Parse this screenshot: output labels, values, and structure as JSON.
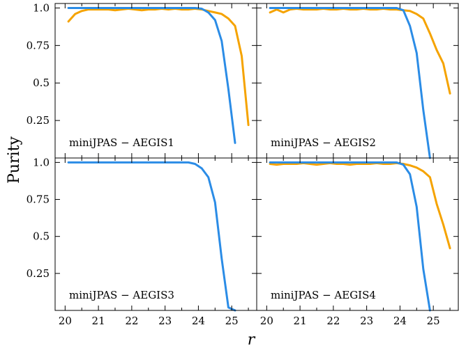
{
  "chart_data": {
    "type": "line",
    "ylabel": "Purity",
    "xlabel": "r",
    "xlim": [
      19.7,
      25.75
    ],
    "ylim": [
      0.0,
      1.03
    ],
    "xticks": [
      20,
      21,
      22,
      23,
      24,
      25
    ],
    "yticks": [
      0.25,
      0.5,
      0.75,
      1.0
    ],
    "ytick_labels": [
      "0.25",
      "0.5",
      "0.75",
      "1.0"
    ],
    "grid": false,
    "colors": {
      "blue": "#2b8ce6",
      "orange": "#f5a300"
    },
    "panels": [
      {
        "label": "miniJPAS − AEGIS1",
        "series": [
          {
            "color": "orange",
            "x": [
              20.1,
              20.3,
              20.5,
              20.7,
              20.9,
              21.1,
              21.3,
              21.5,
              21.7,
              21.9,
              22.1,
              22.3,
              22.5,
              22.7,
              22.9,
              23.1,
              23.3,
              23.5,
              23.7,
              23.9,
              24.1,
              24.3,
              24.5,
              24.7,
              24.9,
              25.1,
              25.3,
              25.5
            ],
            "y": [
              0.91,
              0.96,
              0.98,
              0.99,
              0.99,
              0.99,
              0.99,
              0.985,
              0.99,
              0.995,
              0.99,
              0.985,
              0.99,
              0.99,
              0.995,
              0.99,
              0.995,
              0.99,
              0.99,
              0.995,
              0.99,
              0.98,
              0.97,
              0.96,
              0.93,
              0.88,
              0.68,
              0.22
            ]
          },
          {
            "color": "blue",
            "x": [
              20.1,
              20.3,
              20.5,
              20.7,
              20.9,
              21.1,
              21.3,
              21.5,
              21.7,
              21.9,
              22.1,
              22.3,
              22.5,
              22.7,
              22.9,
              23.1,
              23.3,
              23.5,
              23.7,
              23.9,
              24.1,
              24.3,
              24.5,
              24.7,
              24.9,
              25.1,
              25.3
            ],
            "y": [
              1.0,
              1.0,
              1.0,
              1.0,
              1.0,
              1.0,
              1.0,
              1.0,
              1.0,
              1.0,
              1.0,
              1.0,
              1.0,
              1.0,
              1.0,
              1.0,
              1.0,
              1.0,
              1.0,
              1.0,
              0.995,
              0.97,
              0.92,
              0.78,
              0.46,
              0.1,
              null
            ]
          }
        ]
      },
      {
        "label": "miniJPAS − AEGIS2",
        "series": [
          {
            "color": "orange",
            "x": [
              20.1,
              20.3,
              20.5,
              20.7,
              20.9,
              21.1,
              21.3,
              21.5,
              21.7,
              21.9,
              22.1,
              22.3,
              22.5,
              22.7,
              22.9,
              23.1,
              23.3,
              23.5,
              23.7,
              23.9,
              24.1,
              24.3,
              24.5,
              24.7,
              24.9,
              25.1,
              25.3,
              25.5
            ],
            "y": [
              0.97,
              0.99,
              0.97,
              0.99,
              0.995,
              0.99,
              0.99,
              0.99,
              0.995,
              0.99,
              0.99,
              0.995,
              0.99,
              0.99,
              0.995,
              0.99,
              0.99,
              0.995,
              0.99,
              0.99,
              0.985,
              0.98,
              0.96,
              0.93,
              0.83,
              0.72,
              0.63,
              0.43
            ]
          },
          {
            "color": "blue",
            "x": [
              20.1,
              20.3,
              20.5,
              20.7,
              20.9,
              21.1,
              21.3,
              21.5,
              21.7,
              21.9,
              22.1,
              22.3,
              22.5,
              22.7,
              22.9,
              23.1,
              23.3,
              23.5,
              23.7,
              23.9,
              24.1,
              24.3,
              24.5,
              24.7,
              24.9
            ],
            "y": [
              1.0,
              1.0,
              1.0,
              1.0,
              1.0,
              1.0,
              1.0,
              1.0,
              1.0,
              1.0,
              1.0,
              1.0,
              1.0,
              1.0,
              1.0,
              1.0,
              1.0,
              1.0,
              1.0,
              1.0,
              0.985,
              0.88,
              0.7,
              0.32,
              0.0
            ]
          }
        ]
      },
      {
        "label": "miniJPAS − AEGIS3",
        "series": [
          {
            "color": "blue",
            "x": [
              20.1,
              20.3,
              20.5,
              20.7,
              20.9,
              21.1,
              21.3,
              21.5,
              21.7,
              21.9,
              22.1,
              22.3,
              22.5,
              22.7,
              22.9,
              23.1,
              23.3,
              23.5,
              23.7,
              23.9,
              24.1,
              24.3,
              24.5,
              24.7,
              24.9,
              25.1
            ],
            "y": [
              1.0,
              1.0,
              1.0,
              1.0,
              1.0,
              1.0,
              1.0,
              1.0,
              1.0,
              1.0,
              1.0,
              1.0,
              1.0,
              1.0,
              1.0,
              1.0,
              1.0,
              1.0,
              1.0,
              0.99,
              0.96,
              0.9,
              0.73,
              0.35,
              0.02,
              0.0
            ]
          }
        ]
      },
      {
        "label": "miniJPAS − AEGIS4",
        "series": [
          {
            "color": "orange",
            "x": [
              20.1,
              20.3,
              20.5,
              20.7,
              20.9,
              21.1,
              21.3,
              21.5,
              21.7,
              21.9,
              22.1,
              22.3,
              22.5,
              22.7,
              22.9,
              23.1,
              23.3,
              23.5,
              23.7,
              23.9,
              24.1,
              24.3,
              24.5,
              24.7,
              24.9,
              25.1,
              25.3,
              25.5
            ],
            "y": [
              0.99,
              0.985,
              0.99,
              0.99,
              0.99,
              0.995,
              0.99,
              0.985,
              0.99,
              0.995,
              0.99,
              0.99,
              0.985,
              0.99,
              0.99,
              0.99,
              0.995,
              0.99,
              0.99,
              0.995,
              0.99,
              0.98,
              0.965,
              0.94,
              0.9,
              0.72,
              0.58,
              0.42
            ]
          },
          {
            "color": "blue",
            "x": [
              20.1,
              20.3,
              20.5,
              20.7,
              20.9,
              21.1,
              21.3,
              21.5,
              21.7,
              21.9,
              22.1,
              22.3,
              22.5,
              22.7,
              22.9,
              23.1,
              23.3,
              23.5,
              23.7,
              23.9,
              24.1,
              24.3,
              24.5,
              24.7,
              24.9
            ],
            "y": [
              1.0,
              1.0,
              1.0,
              1.0,
              1.0,
              1.0,
              1.0,
              1.0,
              1.0,
              1.0,
              1.0,
              1.0,
              1.0,
              1.0,
              1.0,
              1.0,
              1.0,
              1.0,
              1.0,
              1.0,
              0.985,
              0.92,
              0.7,
              0.28,
              0.0
            ]
          }
        ]
      }
    ]
  }
}
